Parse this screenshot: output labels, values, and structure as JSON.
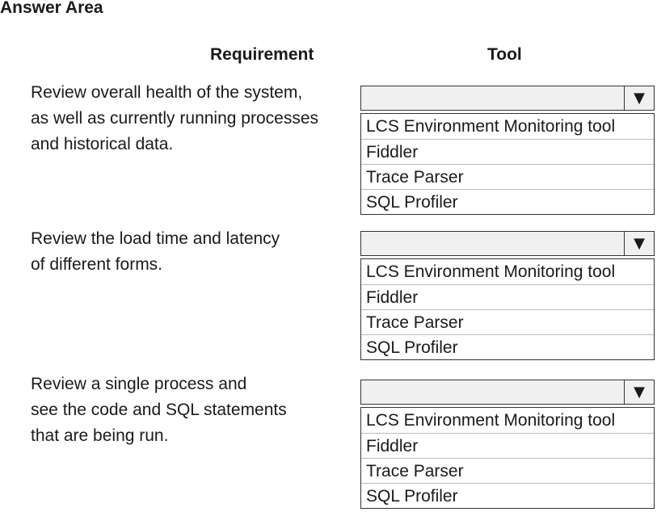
{
  "title": "Answer Area",
  "headers": {
    "requirement": "Requirement",
    "tool": "Tool"
  },
  "rows": [
    {
      "lines": [
        "Review overall health of the system,",
        "as well as currently running processes",
        "and historical data."
      ],
      "options": [
        "LCS Environment Monitoring tool",
        "Fiddler",
        "Trace Parser",
        "SQL Profiler"
      ],
      "selected": ""
    },
    {
      "lines": [
        "Review the load time and latency",
        "of different forms."
      ],
      "options": [
        "LCS Environment Monitoring tool",
        "Fiddler",
        "Trace Parser",
        "SQL Profiler"
      ],
      "selected": ""
    },
    {
      "lines": [
        "Review a single process and",
        "see the code and SQL statements",
        "that are being run."
      ],
      "options": [
        "LCS Environment Monitoring tool",
        "Fiddler",
        "Trace Parser",
        "SQL Profiler"
      ],
      "selected": ""
    }
  ]
}
